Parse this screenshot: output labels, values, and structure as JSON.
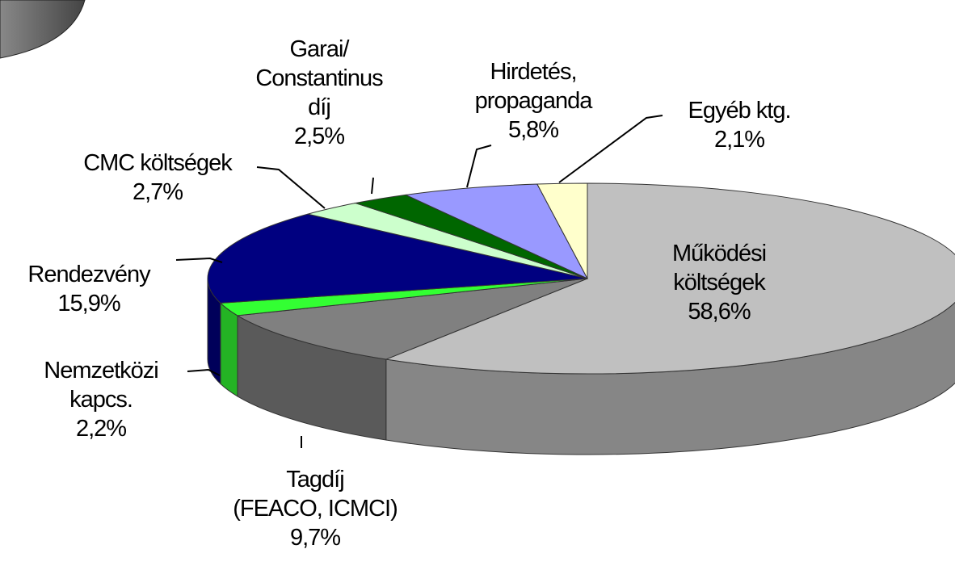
{
  "chart_data": {
    "type": "pie",
    "categories": [
      "Működési\nköltségek",
      "Tagdíj\n(FEACO, ICMCI)",
      "Nemzetközi\nkapcs.",
      "Rendezvény",
      "CMC költségek",
      "Garai/\nConstantinus\ndíj",
      "Hirdetés,\npropaganda",
      "Egyéb ktg."
    ],
    "values": [
      58.6,
      9.7,
      2.2,
      15.9,
      2.7,
      2.5,
      5.8,
      2.1
    ],
    "value_labels": [
      "58,6%",
      "9,7%",
      "2,2%",
      "15,9%",
      "2,7%",
      "2,5%",
      "5,8%",
      "2,1%"
    ],
    "colors": [
      "#c0c0c0",
      "#808080",
      "#33ff33",
      "#000080",
      "#ccffcc",
      "#006600",
      "#9999ff",
      "#ffffcc"
    ]
  }
}
